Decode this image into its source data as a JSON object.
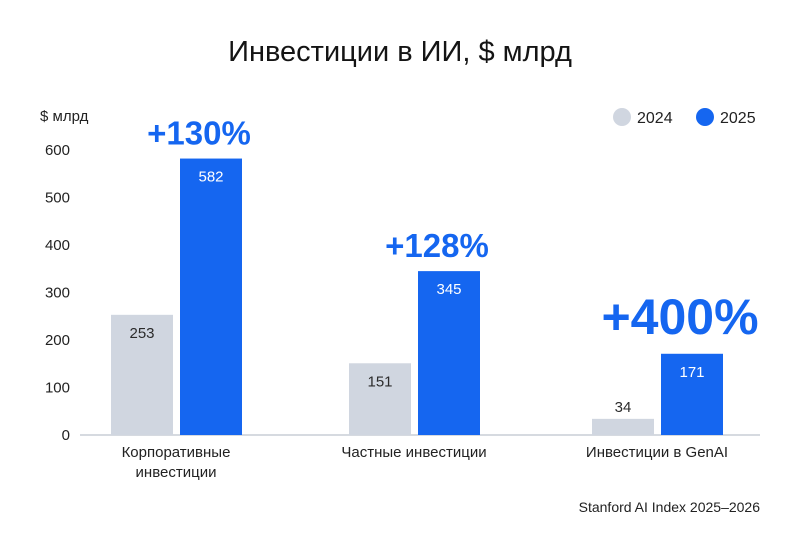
{
  "chart_data": {
    "type": "bar",
    "title": "Инвестиции в ИИ, $ млрд",
    "ylabel": "$ млрд",
    "ylim": [
      0,
      600
    ],
    "yticks": [
      0,
      100,
      200,
      300,
      400,
      500,
      600
    ],
    "categories": [
      [
        "Корпоративные",
        "инвестиции"
      ],
      [
        "Частные инвестиции"
      ],
      [
        "Инвестиции в GenAI"
      ]
    ],
    "series": [
      {
        "name": "2024",
        "color": "#d0d6e0",
        "values": [
          253,
          151,
          34
        ]
      },
      {
        "name": "2025",
        "color": "#1566f0",
        "values": [
          582,
          345,
          171
        ]
      }
    ],
    "growth_labels": [
      "+130%",
      "+128%",
      "+400%"
    ],
    "legend_position": "top-right",
    "grid": false,
    "source": "Stanford AI Index 2025–2026"
  }
}
